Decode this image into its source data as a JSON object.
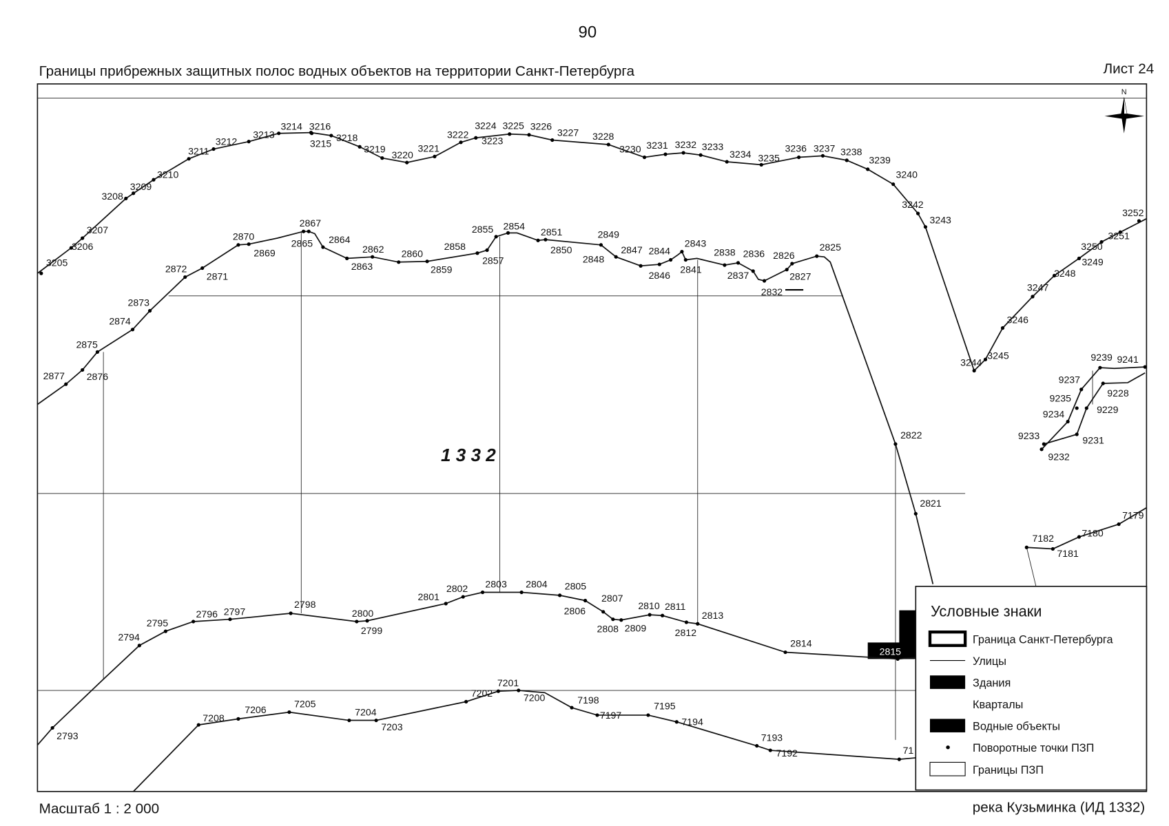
{
  "page_number": "90",
  "header": {
    "title": "Границы прибрежных защитных полос водных объектов на территории Санкт-Петербурга",
    "sheet": "Лист 24"
  },
  "map": {
    "north": "N",
    "area_label": "1 3 3 2",
    "lines": [
      {
        "points": [
          "3205",
          "3206",
          "3207",
          "3208",
          "3209",
          "3210",
          "3211",
          "3212",
          "3213",
          "3214",
          "3216",
          "3215",
          "3218",
          "3219",
          "3220",
          "3221",
          "3222",
          "3224",
          "3223",
          "3225",
          "3226",
          "3227",
          "3228",
          "3230",
          "3231",
          "3232",
          "3233",
          "3234",
          "3235",
          "3236",
          "3237",
          "3238",
          "3239",
          "3240",
          "3242",
          "3243",
          "3244",
          "3245",
          "3246",
          "3247",
          "3248",
          "3249",
          "3250",
          "3251",
          "3252"
        ]
      },
      {
        "points": [
          "2877",
          "2876",
          "2875",
          "2874",
          "2873",
          "2872",
          "2871",
          "2870",
          "2869",
          "2865",
          "2867",
          "2864",
          "2863",
          "2862",
          "2860",
          "2859",
          "2858",
          "2857",
          "2855",
          "2854",
          "2851",
          "2850",
          "2849",
          "2848",
          "2847",
          "2846",
          "2844",
          "2843",
          "2841",
          "2838",
          "2837",
          "2836",
          "2832",
          "2826",
          "2827",
          "2825",
          "2822",
          "2821"
        ]
      },
      {
        "points": [
          "2793",
          "2794",
          "2795",
          "2796",
          "2797",
          "2798",
          "2800",
          "2799",
          "2801",
          "2802",
          "2803",
          "2804",
          "2805",
          "2806",
          "2807",
          "2808",
          "2809",
          "2810",
          "2811",
          "2812",
          "2813",
          "2814",
          "2815"
        ]
      },
      {
        "points": [
          "7208",
          "7206",
          "7205",
          "7204",
          "7203",
          "7202",
          "7201",
          "7200",
          "7198",
          "7197",
          "7195",
          "7194",
          "7193",
          "7192",
          "71"
        ]
      },
      {
        "points": [
          "9239",
          "9241",
          "9237",
          "9235",
          "9228",
          "9234",
          "9229",
          "9233",
          "9231",
          "9232"
        ]
      },
      {
        "points": [
          "7182",
          "7181",
          "7180",
          "7179"
        ]
      }
    ]
  },
  "legend": {
    "title": "Условные знаки",
    "items": [
      "Граница Санкт-Петербурга",
      "Улицы",
      "Здания",
      "Кварталы",
      "Водные объекты",
      "Поворотные точки ПЗП",
      "Границы ПЗП"
    ]
  },
  "footer": {
    "scale": "Масштаб 1 : 2 000",
    "object": "река Кузьминка (ИД 1332)"
  }
}
